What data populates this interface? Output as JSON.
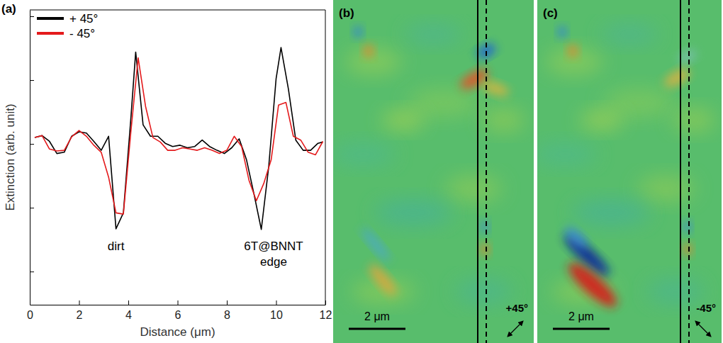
{
  "chart_data": {
    "type": "line",
    "panel_label": "(a)",
    "x_label": "Distance (μm)",
    "y_label": "Extinction (arb. unit)",
    "xlim": [
      0,
      12
    ],
    "xticks": [
      0,
      2,
      4,
      6,
      8,
      10,
      12
    ],
    "ylim": [
      0.48,
      5.1
    ],
    "yticks": [
      1,
      2,
      3,
      4,
      5
    ],
    "tick_labels": "x",
    "legend": "upper left",
    "series": [
      {
        "name": "+ 45°",
        "color": "#000000",
        "x": [
          0.2,
          0.5,
          0.8,
          1.1,
          1.4,
          1.7,
          2.0,
          2.3,
          2.6,
          2.9,
          3.2,
          3.5,
          3.8,
          4.1,
          4.3,
          4.6,
          4.9,
          5.2,
          5.5,
          5.8,
          6.1,
          6.4,
          6.7,
          7.0,
          7.3,
          7.6,
          7.9,
          8.2,
          8.5,
          8.8,
          9.1,
          9.4,
          9.7,
          10.0,
          10.2,
          10.5,
          10.8,
          11.1,
          11.4,
          11.7,
          11.9
        ],
        "values": [
          3.1,
          3.13,
          3.04,
          2.85,
          2.87,
          3.12,
          3.19,
          3.17,
          3.04,
          2.9,
          3.12,
          1.67,
          1.92,
          3.38,
          4.44,
          3.3,
          3.12,
          3.12,
          3.01,
          2.96,
          2.98,
          2.94,
          2.96,
          3.06,
          2.96,
          2.9,
          2.85,
          2.94,
          3.08,
          2.75,
          2.22,
          1.66,
          2.64,
          4.02,
          4.51,
          3.86,
          3.06,
          2.9,
          2.9,
          3.01,
          3.03
        ]
      },
      {
        "name": "- 45°",
        "color": "#e41a1c",
        "x": [
          0.2,
          0.5,
          0.8,
          1.1,
          1.4,
          1.7,
          2.0,
          2.3,
          2.6,
          2.9,
          3.2,
          3.5,
          3.8,
          4.1,
          4.4,
          4.7,
          5.0,
          5.3,
          5.6,
          5.9,
          6.2,
          6.5,
          6.8,
          7.1,
          7.4,
          7.7,
          8.0,
          8.3,
          8.6,
          8.9,
          9.2,
          9.5,
          9.8,
          10.1,
          10.4,
          10.7,
          11.0,
          11.3,
          11.6,
          11.9
        ],
        "values": [
          3.1,
          3.13,
          2.92,
          2.89,
          2.9,
          3.11,
          3.21,
          3.12,
          2.98,
          2.87,
          2.48,
          1.92,
          1.9,
          3.17,
          4.35,
          3.59,
          3.1,
          3.03,
          2.9,
          2.9,
          2.94,
          2.92,
          2.9,
          2.94,
          2.9,
          2.85,
          2.9,
          3.12,
          2.96,
          2.43,
          2.11,
          2.38,
          2.75,
          3.61,
          3.65,
          3.12,
          3.06,
          2.87,
          2.83,
          3.04
        ]
      }
    ],
    "annotations": [
      {
        "text": "dirt",
        "x": 3.5,
        "y": 1.34
      },
      {
        "text": "6T@BNNT edge",
        "x": 9.9,
        "y": 1.34
      }
    ]
  },
  "images": [
    {
      "panel_label": "(b)",
      "scale_bar": "2 μm",
      "polarization": "+45°"
    },
    {
      "panel_label": "(c)",
      "scale_bar": "2 μm",
      "polarization": "-45°"
    }
  ]
}
